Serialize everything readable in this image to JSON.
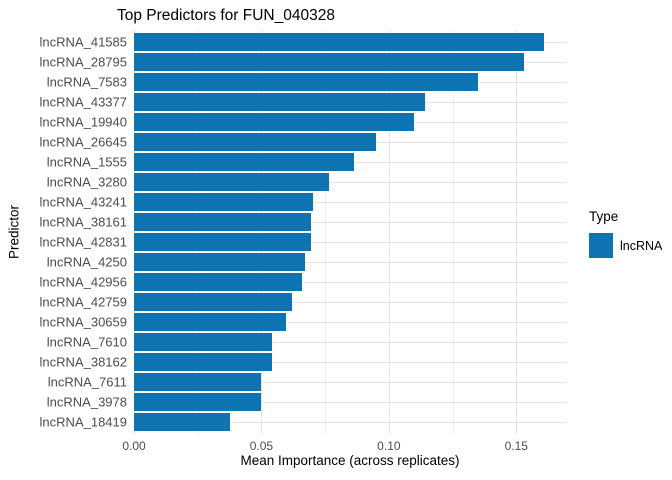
{
  "chart_data": {
    "type": "bar",
    "orientation": "horizontal",
    "title": "Top Predictors for FUN_040328",
    "xlabel": "Mean Importance (across replicates)",
    "ylabel": "Predictor",
    "categories": [
      "lncRNA_41585",
      "lncRNA_28795",
      "lncRNA_7583",
      "lncRNA_43377",
      "lncRNA_19940",
      "lncRNA_26645",
      "lncRNA_1555",
      "lncRNA_3280",
      "lncRNA_43241",
      "lncRNA_38161",
      "lncRNA_42831",
      "lncRNA_4250",
      "lncRNA_42956",
      "lncRNA_42759",
      "lncRNA_30659",
      "lncRNA_7610",
      "lncRNA_38162",
      "lncRNA_7611",
      "lncRNA_3978",
      "lncRNA_18419"
    ],
    "values": [
      0.161,
      0.153,
      0.135,
      0.114,
      0.11,
      0.095,
      0.0863,
      0.0766,
      0.0702,
      0.0695,
      0.0693,
      0.0672,
      0.0659,
      0.0618,
      0.0596,
      0.0542,
      0.054,
      0.05,
      0.05,
      0.0378
    ],
    "xlim": [
      0,
      0.1695
    ],
    "x_major_ticks": [
      {
        "value": 0.0,
        "label": "0.00"
      },
      {
        "value": 0.05,
        "label": "0.05"
      },
      {
        "value": 0.1,
        "label": "0.10"
      },
      {
        "value": 0.15,
        "label": "0.15"
      }
    ],
    "x_minor_ticks": [
      0.025,
      0.075,
      0.125
    ],
    "grid": "major-and-minor-vertical, category-horizontal",
    "legend": {
      "title": "Type",
      "position": "right",
      "entries": [
        {
          "label": "lncRNA",
          "color": "#0d73b1"
        }
      ]
    },
    "colors": {
      "bar": "#0d73b1",
      "grid_major": "#e4e4e4",
      "grid_minor": "#f0f0f0",
      "tick_text": "#4d4d4d",
      "title_text": "#000000",
      "background": "#ffffff"
    }
  }
}
